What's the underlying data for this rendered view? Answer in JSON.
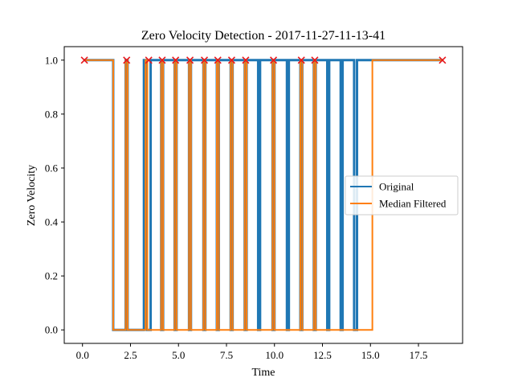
{
  "chart_data": {
    "type": "line",
    "title": "Zero Velocity Detection - 2017-11-27-11-13-41",
    "xlabel": "Time",
    "ylabel": "Zero Velocity",
    "xlim": [
      -0.95,
      19.8
    ],
    "ylim": [
      -0.05,
      1.05
    ],
    "xticks": [
      0.0,
      2.5,
      5.0,
      7.5,
      10.0,
      12.5,
      15.0,
      17.5
    ],
    "xtick_labels": [
      "0.0",
      "2.5",
      "5.0",
      "7.5",
      "10.0",
      "12.5",
      "15.0",
      "17.5"
    ],
    "yticks": [
      0.0,
      0.2,
      0.4,
      0.6,
      0.8,
      1.0
    ],
    "ytick_labels": [
      "0.0",
      "0.2",
      "0.4",
      "0.6",
      "0.8",
      "1.0"
    ],
    "grid": false,
    "legend_position": "center-right",
    "series": [
      {
        "name": "Original",
        "color": "#1f77b4",
        "width": 3,
        "x": [
          0.05,
          1.6,
          1.6,
          2.25,
          2.25,
          2.35,
          2.35,
          3.2,
          3.2,
          3.35,
          3.35,
          3.55,
          3.55,
          4.1,
          4.1,
          4.2,
          4.2,
          4.8,
          4.8,
          4.9,
          4.9,
          5.55,
          5.55,
          5.65,
          5.65,
          6.3,
          6.3,
          6.4,
          6.4,
          7.0,
          7.0,
          7.1,
          7.1,
          7.72,
          7.72,
          7.82,
          7.82,
          8.45,
          8.45,
          8.55,
          8.55,
          9.15,
          9.15,
          9.25,
          9.25,
          9.9,
          9.9,
          10.0,
          10.0,
          10.65,
          10.65,
          10.75,
          10.75,
          11.35,
          11.35,
          11.45,
          11.45,
          12.05,
          12.05,
          12.15,
          12.15,
          12.75,
          12.75,
          12.85,
          12.85,
          13.45,
          13.45,
          13.55,
          13.55,
          14.15,
          14.15,
          14.3,
          14.3,
          15.1,
          15.1,
          18.8
        ],
        "y": [
          1,
          1,
          0,
          0,
          1,
          1,
          0,
          0,
          1,
          1,
          0,
          0,
          1,
          1,
          0,
          0,
          1,
          1,
          0,
          0,
          1,
          1,
          0,
          0,
          1,
          1,
          0,
          0,
          1,
          1,
          0,
          0,
          1,
          1,
          0,
          0,
          1,
          1,
          0,
          0,
          1,
          1,
          0,
          0,
          1,
          1,
          0,
          0,
          1,
          1,
          0,
          0,
          1,
          1,
          0,
          0,
          1,
          1,
          0,
          0,
          1,
          1,
          0,
          0,
          1,
          1,
          0,
          0,
          1,
          1,
          0,
          0,
          1,
          1,
          1,
          1
        ]
      },
      {
        "name": "Median Filtered",
        "color": "#ff7f0e",
        "width": 2,
        "x": [
          0.05,
          1.6,
          1.6,
          2.25,
          2.25,
          2.35,
          2.35,
          3.28,
          3.28,
          3.38,
          3.38,
          4.1,
          4.1,
          4.2,
          4.2,
          4.8,
          4.8,
          4.9,
          4.9,
          5.55,
          5.55,
          5.65,
          5.65,
          6.3,
          6.3,
          6.4,
          6.4,
          7.0,
          7.0,
          7.1,
          7.1,
          7.72,
          7.72,
          7.82,
          7.82,
          8.45,
          8.45,
          8.55,
          8.55,
          9.9,
          9.9,
          10.0,
          10.0,
          11.35,
          11.35,
          11.45,
          11.45,
          12.05,
          12.05,
          12.15,
          12.15,
          15.1,
          15.1,
          18.8
        ],
        "y": [
          1,
          1,
          0,
          0,
          1,
          1,
          0,
          0,
          1,
          1,
          0,
          0,
          1,
          1,
          0,
          0,
          1,
          1,
          0,
          0,
          1,
          1,
          0,
          0,
          1,
          1,
          0,
          0,
          1,
          1,
          0,
          0,
          1,
          1,
          0,
          0,
          1,
          1,
          0,
          0,
          1,
          1,
          0,
          0,
          1,
          1,
          0,
          0,
          1,
          1,
          0,
          0,
          1,
          1
        ]
      }
    ],
    "markers": {
      "shape": "x",
      "color": "#e8161b",
      "x": [
        0.1,
        2.3,
        3.45,
        4.15,
        4.85,
        5.6,
        6.35,
        7.05,
        7.77,
        8.5,
        9.95,
        11.4,
        12.1,
        18.75
      ],
      "y": [
        1,
        1,
        1,
        1,
        1,
        1,
        1,
        1,
        1,
        1,
        1,
        1,
        1,
        1
      ]
    }
  }
}
